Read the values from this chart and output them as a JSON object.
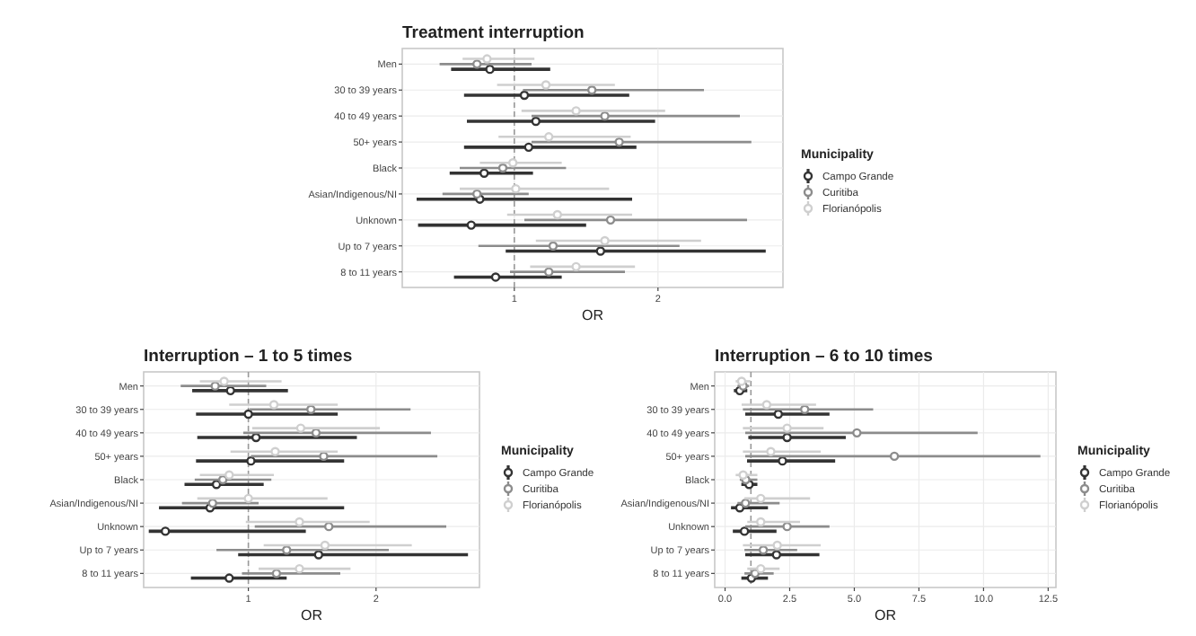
{
  "chart_data": [
    {
      "type": "scatter",
      "orientation": "horizontal",
      "title": "Treatment interruption",
      "xlabel": "OR",
      "legend_title": "Municipality",
      "legend": "right",
      "grid": true,
      "marker": "circle",
      "categories": [
        "Men",
        "30 to 39 years",
        "40 to 49 years",
        "50+ years",
        "Black",
        "Asian/Indigenous/NI",
        "Unknown",
        "Up to 7 years",
        "8 to 11 years"
      ],
      "xlim": [
        0.22,
        2.87
      ],
      "xticks": [
        1,
        2
      ],
      "ref_lines": [
        {
          "axis": "x",
          "value": 1,
          "line_style": "dashed",
          "color": "#999999"
        }
      ],
      "series": [
        {
          "name": "Campo Grande",
          "color": "#333333",
          "values": [
            0.83,
            1.07,
            1.15,
            1.1,
            0.79,
            0.76,
            0.7,
            1.6,
            0.87
          ],
          "errors": [
            [
              0.56,
              1.25
            ],
            [
              0.65,
              1.8
            ],
            [
              0.67,
              1.98
            ],
            [
              0.65,
              1.85
            ],
            [
              0.55,
              1.13
            ],
            [
              0.32,
              1.82
            ],
            [
              0.33,
              1.5
            ],
            [
              0.94,
              2.75
            ],
            [
              0.58,
              1.33
            ]
          ]
        },
        {
          "name": "Curitiba",
          "color": "#8c8c8c",
          "values": [
            0.74,
            1.54,
            1.63,
            1.73,
            0.92,
            0.74,
            1.67,
            1.27,
            1.24
          ],
          "errors": [
            [
              0.48,
              1.12
            ],
            [
              1.06,
              2.32
            ],
            [
              1.12,
              2.57
            ],
            [
              1.12,
              2.65
            ],
            [
              0.62,
              1.36
            ],
            [
              0.5,
              1.1
            ],
            [
              1.07,
              2.62
            ],
            [
              0.75,
              2.15
            ],
            [
              0.97,
              1.77
            ]
          ]
        },
        {
          "name": "Florianópolis",
          "color": "#cfcfcf",
          "values": [
            0.81,
            1.22,
            1.43,
            1.24,
            0.99,
            1.01,
            1.3,
            1.63,
            1.43
          ],
          "errors": [
            [
              0.64,
              1.14
            ],
            [
              0.88,
              1.7
            ],
            [
              1.05,
              2.05
            ],
            [
              0.89,
              1.81
            ],
            [
              0.76,
              1.33
            ],
            [
              0.62,
              1.66
            ],
            [
              0.95,
              1.82
            ],
            [
              1.15,
              2.3
            ],
            [
              1.11,
              1.84
            ]
          ]
        }
      ]
    },
    {
      "type": "scatter",
      "orientation": "horizontal",
      "title": "Interruption – 1 to 5 times",
      "xlabel": "OR",
      "legend_title": "Municipality",
      "legend": "right",
      "grid": true,
      "marker": "circle",
      "categories": [
        "Men",
        "30 to 39 years",
        "40 to 49 years",
        "50+ years",
        "Black",
        "Asian/Indigenous/NI",
        "Unknown",
        "Up to 7 years",
        "8 to 11 years"
      ],
      "xlim": [
        0.18,
        2.81
      ],
      "xticks": [
        1,
        2
      ],
      "ref_lines": [
        {
          "axis": "x",
          "value": 1,
          "line_style": "dashed",
          "color": "#999999"
        }
      ],
      "series": [
        {
          "name": "Campo Grande",
          "color": "#333333",
          "values": [
            0.86,
            1,
            1.06,
            1.02,
            0.75,
            0.7,
            0.35,
            1.55,
            0.85
          ],
          "errors": [
            [
              0.56,
              1.31
            ],
            [
              0.59,
              1.7
            ],
            [
              0.6,
              1.85
            ],
            [
              0.59,
              1.75
            ],
            [
              0.5,
              1.12
            ],
            [
              0.3,
              1.75
            ],
            [
              0.22,
              1.45
            ],
            [
              0.92,
              2.72
            ],
            [
              0.55,
              1.3
            ]
          ]
        },
        {
          "name": "Curitiba",
          "color": "#8c8c8c",
          "values": [
            0.74,
            1.49,
            1.53,
            1.59,
            0.8,
            0.72,
            1.63,
            1.3,
            1.22
          ],
          "errors": [
            [
              0.47,
              1.14
            ],
            [
              1.01,
              2.27
            ],
            [
              0.96,
              2.43
            ],
            [
              1.02,
              2.48
            ],
            [
              0.58,
              1.18
            ],
            [
              0.48,
              1.08
            ],
            [
              1.05,
              2.55
            ],
            [
              0.75,
              2.1
            ],
            [
              0.95,
              1.72
            ]
          ]
        },
        {
          "name": "Florianópolis",
          "color": "#cfcfcf",
          "values": [
            0.81,
            1.2,
            1.41,
            1.21,
            0.85,
            1,
            1.4,
            1.6,
            1.4
          ],
          "errors": [
            [
              0.62,
              1.26
            ],
            [
              0.85,
              1.7
            ],
            [
              1.03,
              2.03
            ],
            [
              0.86,
              1.7
            ],
            [
              0.62,
              1.2
            ],
            [
              0.6,
              1.62
            ],
            [
              0.98,
              1.95
            ],
            [
              1.12,
              2.28
            ],
            [
              1.08,
              1.8
            ]
          ]
        }
      ]
    },
    {
      "type": "scatter",
      "orientation": "horizontal",
      "title": "Interruption – 6 to 10 times",
      "xlabel": "OR",
      "legend_title": "Municipality",
      "legend": "right",
      "grid": true,
      "marker": "circle",
      "categories": [
        "Men",
        "30 to 39 years",
        "40 to 49 years",
        "50+ years",
        "Black",
        "Asian/Indigenous/NI",
        "Unknown",
        "Up to 7 years",
        "8 to 11 years"
      ],
      "xlim": [
        -0.4,
        12.8
      ],
      "xticks": [
        {
          "value": 0,
          "label": "0.0"
        },
        2.5,
        {
          "value": 5,
          "label": "5.0"
        },
        7.5,
        {
          "value": 10,
          "label": "10.0"
        },
        12.5
      ],
      "ref_lines": [
        {
          "axis": "x",
          "value": 1,
          "line_style": "dashed",
          "color": "#999999"
        }
      ],
      "series": [
        {
          "name": "Campo Grande",
          "color": "#333333",
          "values": [
            0.57,
            2.06,
            2.4,
            2.22,
            0.93,
            0.57,
            0.75,
            1.99,
            1.02
          ],
          "errors": [
            [
              0.34,
              0.86
            ],
            [
              0.78,
              4.04
            ],
            [
              0.9,
              4.67
            ],
            [
              0.85,
              4.26
            ],
            [
              0.63,
              1.25
            ],
            [
              0.23,
              1.66
            ],
            [
              0.3,
              1.99
            ],
            [
              0.78,
              3.65
            ],
            [
              0.63,
              1.66
            ]
          ]
        },
        {
          "name": "Curitiba",
          "color": "#8c8c8c",
          "values": [
            0.7,
            3.08,
            5.1,
            6.55,
            0.8,
            0.79,
            2.4,
            1.48,
            1.16
          ],
          "errors": [
            [
              0.48,
              0.93
            ],
            [
              0.69,
              5.73
            ],
            [
              0.78,
              9.77
            ],
            [
              0.78,
              12.2
            ],
            [
              0.57,
              1.25
            ],
            [
              0.48,
              2.11
            ],
            [
              0.78,
              4.04
            ],
            [
              0.75,
              2.79
            ],
            [
              0.75,
              1.88
            ]
          ]
        },
        {
          "name": "Florianópolis",
          "color": "#cfcfcf",
          "values": [
            0.64,
            1.61,
            2.4,
            1.77,
            0.7,
            1.38,
            1.38,
            2.02,
            1.38
          ],
          "errors": [
            [
              0.41,
              0.98
            ],
            [
              0.64,
              3.52
            ],
            [
              0.69,
              3.81
            ],
            [
              0.69,
              3.7
            ],
            [
              0.41,
              1.25
            ],
            [
              0.75,
              3.29
            ],
            [
              0.86,
              2.9
            ],
            [
              0.69,
              3.7
            ],
            [
              0.86,
              2.11
            ]
          ]
        }
      ]
    }
  ]
}
